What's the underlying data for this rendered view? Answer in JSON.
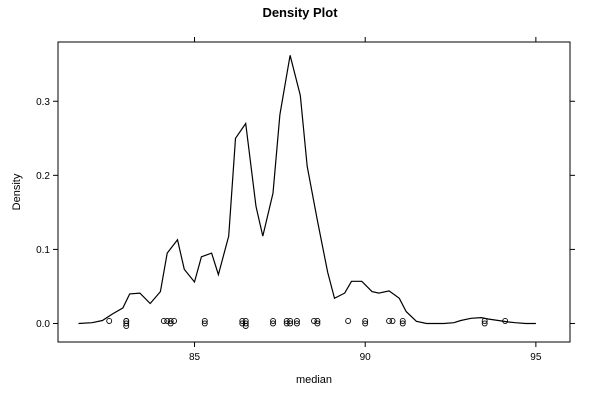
{
  "chart_data": {
    "type": "line",
    "title": "Density Plot",
    "xlabel": "median",
    "ylabel": "Density",
    "xlim": [
      81.0,
      96.0
    ],
    "ylim": [
      -0.025,
      0.38
    ],
    "x_ticks": [
      85,
      90,
      95
    ],
    "x_tick_labels": [
      "85",
      "90",
      "95"
    ],
    "y_ticks": [
      0.0,
      0.1,
      0.2,
      0.3
    ],
    "y_tick_labels": [
      "0.0",
      "0.1",
      "0.2",
      "0.3"
    ],
    "grid": false,
    "legend": "none",
    "series": [
      {
        "values_xy": [
          [
            81.6,
            0.0
          ],
          [
            82.0,
            0.001
          ],
          [
            82.3,
            0.004
          ],
          [
            82.6,
            0.013
          ],
          [
            82.9,
            0.021
          ],
          [
            83.1,
            0.04
          ],
          [
            83.4,
            0.041
          ],
          [
            83.7,
            0.027
          ],
          [
            84.0,
            0.043
          ],
          [
            84.2,
            0.095
          ],
          [
            84.5,
            0.113
          ],
          [
            84.7,
            0.073
          ],
          [
            85.0,
            0.056
          ],
          [
            85.2,
            0.09
          ],
          [
            85.5,
            0.095
          ],
          [
            85.7,
            0.066
          ],
          [
            86.0,
            0.118
          ],
          [
            86.2,
            0.25
          ],
          [
            86.5,
            0.27
          ],
          [
            86.8,
            0.158
          ],
          [
            87.0,
            0.118
          ],
          [
            87.3,
            0.176
          ],
          [
            87.5,
            0.282
          ],
          [
            87.8,
            0.362
          ],
          [
            88.1,
            0.308
          ],
          [
            88.3,
            0.212
          ],
          [
            88.6,
            0.139
          ],
          [
            88.9,
            0.069
          ],
          [
            89.1,
            0.034
          ],
          [
            89.4,
            0.041
          ],
          [
            89.6,
            0.057
          ],
          [
            89.9,
            0.057
          ],
          [
            90.2,
            0.043
          ],
          [
            90.4,
            0.041
          ],
          [
            90.7,
            0.044
          ],
          [
            91.0,
            0.034
          ],
          [
            91.2,
            0.016
          ],
          [
            91.5,
            0.003
          ],
          [
            91.8,
            0.0
          ],
          [
            92.0,
            0.0
          ],
          [
            92.3,
            0.0
          ],
          [
            92.6,
            0.001
          ],
          [
            92.8,
            0.004
          ],
          [
            93.1,
            0.007
          ],
          [
            93.4,
            0.008
          ],
          [
            93.6,
            0.006
          ],
          [
            93.9,
            0.004
          ],
          [
            94.2,
            0.002
          ],
          [
            94.4,
            0.001
          ],
          [
            94.7,
            0.0
          ],
          [
            95.0,
            0.0
          ]
        ]
      }
    ],
    "rug": [
      82.5,
      83.0,
      83.0,
      83.0,
      83.0,
      84.1,
      84.2,
      84.3,
      84.3,
      84.4,
      85.3,
      85.3,
      86.4,
      86.4,
      86.5,
      86.5,
      86.5,
      87.3,
      87.3,
      87.7,
      87.7,
      87.8,
      87.8,
      88.0,
      88.0,
      88.5,
      88.6,
      88.6,
      89.5,
      90.0,
      90.0,
      90.7,
      90.8,
      91.1,
      91.1,
      93.5,
      93.5,
      94.1
    ]
  }
}
